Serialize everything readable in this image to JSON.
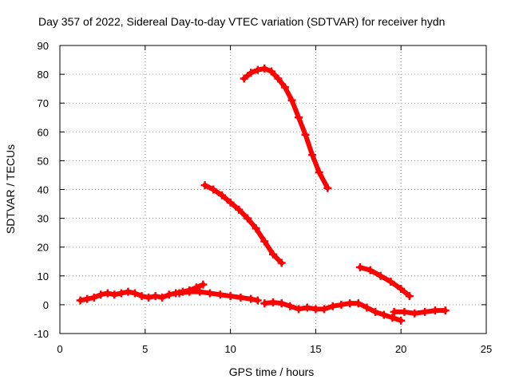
{
  "chart_data": {
    "type": "scatter",
    "title": "Day 357 of 2022, Sidereal Day-to-day VTEC variation (SDTVAR) for receiver hydn",
    "xlabel": "GPS time / hours",
    "ylabel": "SDTVAR / TECUs",
    "xlim": [
      0,
      25
    ],
    "ylim": [
      -10,
      90
    ],
    "xticks": [
      0,
      5,
      10,
      15,
      20,
      25
    ],
    "yticks": [
      -10,
      0,
      10,
      20,
      30,
      40,
      50,
      60,
      70,
      80,
      90
    ],
    "grid": true,
    "marker": "plus",
    "color": "#ff0000",
    "series": [
      {
        "name": "arc-low-1",
        "x": [
          1.2,
          1.6,
          2.0,
          2.4,
          2.8,
          3.2,
          3.6,
          4.0,
          4.4,
          4.8,
          5.2,
          5.6,
          6.0,
          6.4,
          6.8,
          7.2,
          7.6,
          8.0,
          8.4
        ],
        "y": [
          1.5,
          2.0,
          2.5,
          3.5,
          4.0,
          3.5,
          4.0,
          4.5,
          4.0,
          3.0,
          2.5,
          3.0,
          2.5,
          3.5,
          4.0,
          4.5,
          5.0,
          6.0,
          7.0
        ]
      },
      {
        "name": "arc-low-2",
        "x": [
          7.0,
          7.6,
          8.2,
          8.8,
          9.4,
          10.0,
          10.6,
          11.2,
          11.6
        ],
        "y": [
          4.0,
          4.5,
          4.5,
          4.0,
          3.5,
          3.0,
          2.5,
          2.0,
          1.5
        ]
      },
      {
        "name": "arc-low-3",
        "x": [
          12.0,
          12.5,
          13.0,
          13.5,
          14.0,
          14.5,
          15.0,
          15.5,
          16.0,
          16.5,
          17.0,
          17.5,
          18.0,
          18.5,
          19.0,
          19.5,
          20.0
        ],
        "y": [
          0.5,
          0.8,
          0.5,
          -0.5,
          -1.5,
          -1.0,
          -1.5,
          -1.5,
          -0.5,
          0.0,
          0.5,
          0.5,
          -1.0,
          -2.5,
          -3.5,
          -4.5,
          -5.5
        ]
      },
      {
        "name": "arc-low-4",
        "x": [
          19.6,
          20.2,
          20.8,
          21.4,
          22.0,
          22.6
        ],
        "y": [
          -2.5,
          -2.5,
          -3.0,
          -2.5,
          -2.0,
          -2.0
        ]
      },
      {
        "name": "arc-mid-1",
        "x": [
          8.5,
          9.0,
          9.5,
          10.0,
          10.5,
          11.0,
          11.5,
          12.0,
          12.5,
          13.0
        ],
        "y": [
          41.5,
          40.0,
          38.0,
          35.5,
          33.0,
          30.0,
          26.5,
          22.0,
          17.5,
          14.5
        ]
      },
      {
        "name": "arc-high",
        "x": [
          10.8,
          11.2,
          11.6,
          12.0,
          12.4,
          12.8,
          13.2,
          13.6,
          14.0,
          14.4,
          14.8,
          15.2,
          15.7
        ],
        "y": [
          78.5,
          80.5,
          81.5,
          82.0,
          81.0,
          78.5,
          75.5,
          71.0,
          65.0,
          59.0,
          52.0,
          46.0,
          40.5
        ]
      },
      {
        "name": "arc-mid-2",
        "x": [
          17.6,
          18.2,
          18.8,
          19.4,
          20.0,
          20.5
        ],
        "y": [
          13.0,
          12.0,
          10.0,
          8.0,
          5.5,
          3.0
        ]
      }
    ]
  }
}
